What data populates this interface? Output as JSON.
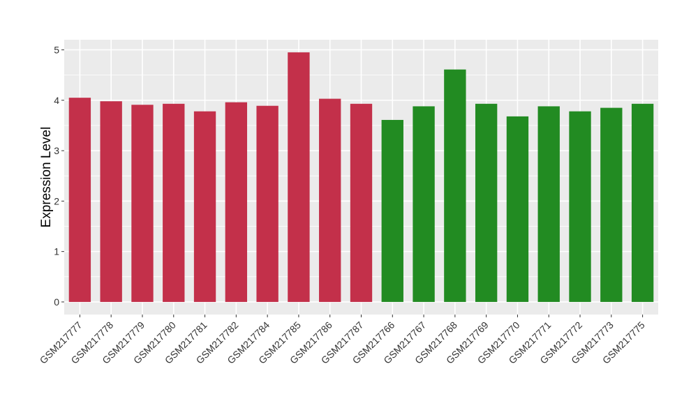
{
  "chart_data": {
    "type": "bar",
    "ylabel": "Expression Level",
    "ylim": [
      -0.25,
      5.2
    ],
    "yticks": [
      0,
      1,
      2,
      3,
      4,
      5
    ],
    "grid": true,
    "legend": "none",
    "categories": [
      "GSM217777",
      "GSM217778",
      "GSM217779",
      "GSM217780",
      "GSM217781",
      "GSM217782",
      "GSM217784",
      "GSM217785",
      "GSM217786",
      "GSM217787",
      "GSM217766",
      "GSM217767",
      "GSM217768",
      "GSM217769",
      "GSM217770",
      "GSM217771",
      "GSM217772",
      "GSM217773",
      "GSM217775"
    ],
    "values": [
      4.05,
      3.98,
      3.91,
      3.93,
      3.78,
      3.96,
      3.89,
      4.95,
      4.03,
      3.93,
      3.61,
      3.88,
      4.61,
      3.93,
      3.68,
      3.88,
      3.78,
      3.85,
      3.93
    ],
    "groups": [
      "a",
      "a",
      "a",
      "a",
      "a",
      "a",
      "a",
      "a",
      "a",
      "a",
      "b",
      "b",
      "b",
      "b",
      "b",
      "b",
      "b",
      "b",
      "b"
    ],
    "colors": {
      "a": "#c3304a",
      "b": "#228b22"
    },
    "panel_bg": "#ebebeb",
    "grid_color": "#ffffff"
  }
}
